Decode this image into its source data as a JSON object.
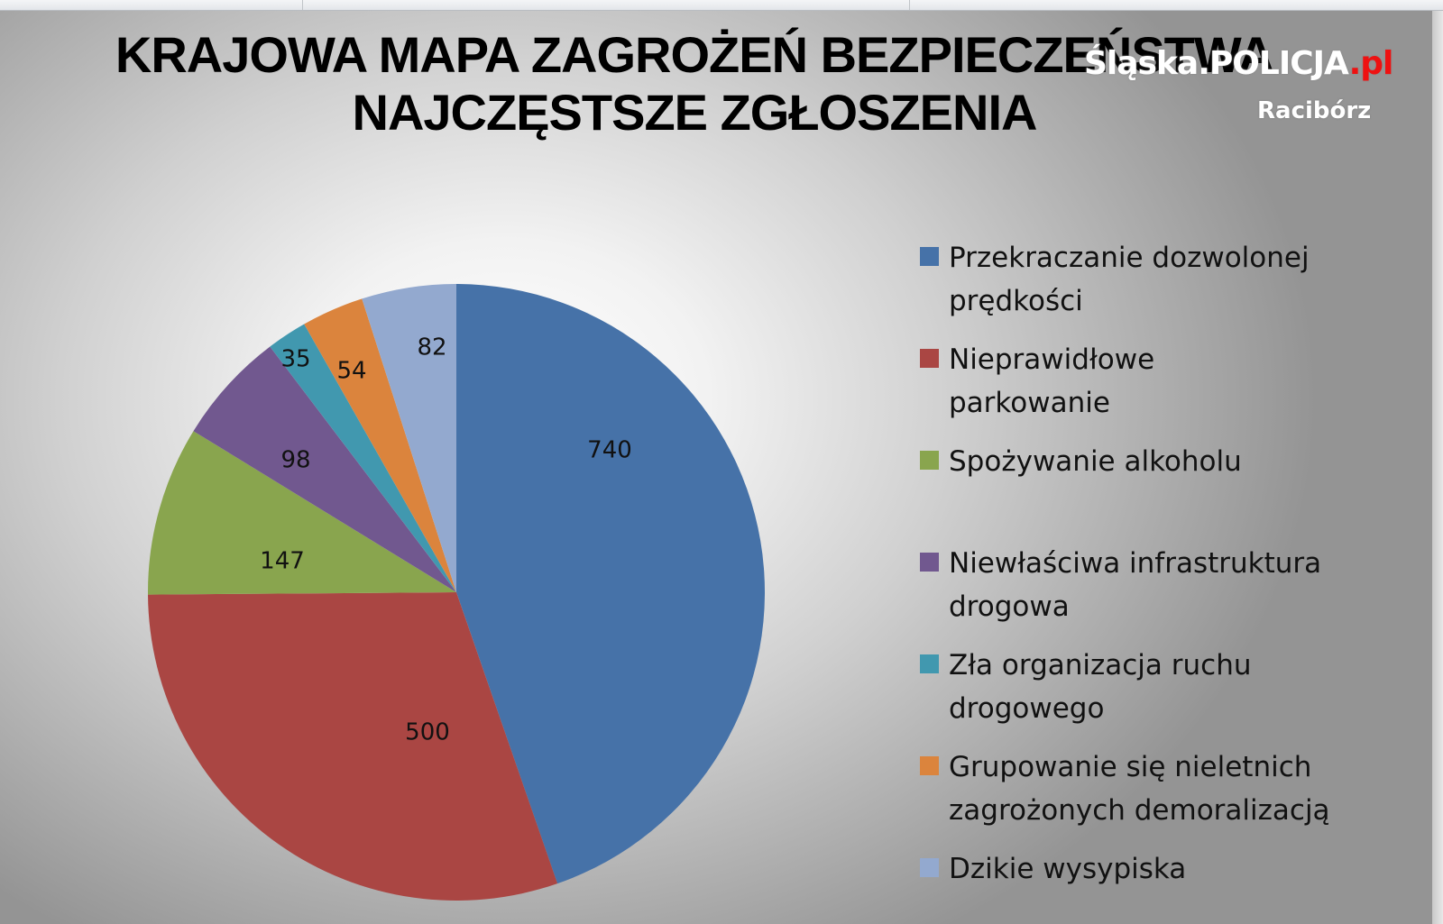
{
  "title": {
    "line1": "KRAJOWA MAPA ZAGROŻEŃ BEZPIECZEŃSTWA",
    "line2": "NAJCZĘSTSZE  ZGŁOSZENIA"
  },
  "watermark": {
    "brand": "Śląska.POLICJA",
    "suffix": ".pl",
    "city": "Racibórz"
  },
  "colors": {
    "speed": "#4672a8",
    "parking": "#aa4643",
    "alcohol": "#89a54e",
    "infrastructure": "#71588f",
    "traffic": "#4198af",
    "youth": "#db843d",
    "dumps": "#93a9cf"
  },
  "chart_data": {
    "type": "pie",
    "title": "KRAJOWA MAPA ZAGROŻEŃ BEZPIECZEŃSTWA NAJCZĘSTSZE ZGŁOSZENIA",
    "categories": [
      "Przekraczanie dozwolonej prędkości",
      "Nieprawidłowe parkowanie",
      "Spożywanie alkoholu",
      "Niewłaściwa infrastruktura drogowa",
      "Zła organizacja ruchu drogowego",
      "Grupowanie się nieletnich zagrożonych demoralizacją",
      "Dzikie wysypiska"
    ],
    "values": [
      740,
      500,
      147,
      98,
      35,
      54,
      82
    ],
    "colors": [
      "#4672a8",
      "#aa4643",
      "#89a54e",
      "#71588f",
      "#4198af",
      "#db843d",
      "#93a9cf"
    ],
    "data_labels": [
      "740",
      "500",
      "147",
      "98",
      "35",
      "54",
      "82"
    ],
    "start_angle": "12 o'clock, clockwise",
    "legend_position": "right"
  },
  "legend": {
    "items": [
      {
        "label": "Przekraczanie dozwolonej prędkości"
      },
      {
        "label": "Nieprawidłowe parkowanie"
      },
      {
        "label": "Spożywanie alkoholu"
      },
      {
        "label": "Niewłaściwa infrastruktura drogowa"
      },
      {
        "label": "Zła organizacja ruchu drogowego"
      },
      {
        "label": "Grupowanie się nieletnich zagrożonych demoralizacją"
      },
      {
        "label": "Dzikie wysypiska"
      }
    ]
  }
}
